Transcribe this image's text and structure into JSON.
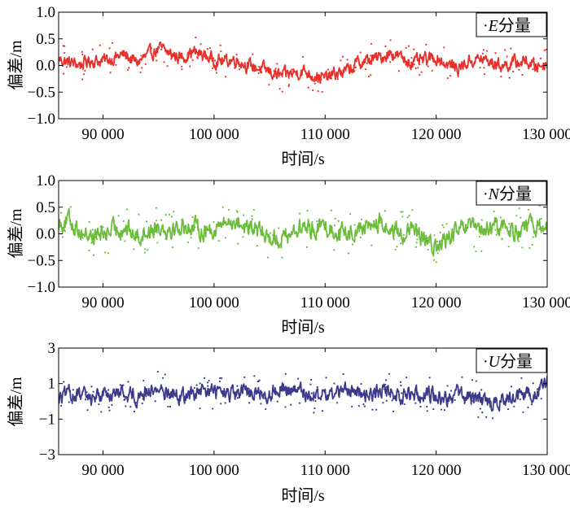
{
  "chart_data": [
    {
      "type": "line",
      "component": "E",
      "legend_prefix": "·",
      "legend_symbol": "E",
      "legend_suffix": "分量",
      "legend_position": "top-right",
      "xlabel": "时间/s",
      "ylabel": "偏差/m",
      "xlim": [
        86000,
        130000
      ],
      "ylim": [
        -1.0,
        1.0
      ],
      "x_ticks": [
        90000,
        100000,
        110000,
        120000,
        130000
      ],
      "x_tick_labels": [
        "90 000",
        "100 000",
        "110 000",
        "120 000",
        "130 000"
      ],
      "y_ticks": [
        1.0,
        0.5,
        0.0,
        -0.5,
        -1.0
      ],
      "y_tick_labels": [
        "1.0",
        "0.5",
        "0.0",
        "−0.5",
        "−1.0"
      ],
      "color": "#e8312b",
      "series": [
        {
          "name": "E",
          "x": [
            86000,
            87000,
            88000,
            89000,
            90000,
            91000,
            92000,
            93000,
            94000,
            95000,
            96000,
            97000,
            98000,
            99000,
            100000,
            101000,
            102000,
            103000,
            104000,
            105000,
            106000,
            107000,
            108000,
            109000,
            110000,
            111000,
            112000,
            113000,
            114000,
            115000,
            116000,
            117000,
            118000,
            119000,
            120000,
            121000,
            122000,
            123000,
            124000,
            125000,
            126000,
            127000,
            128000,
            129000,
            130000
          ],
          "y": [
            0.12,
            0.05,
            0.02,
            0.1,
            0.08,
            0.15,
            0.2,
            0.05,
            0.18,
            0.32,
            0.22,
            0.15,
            0.25,
            0.2,
            0.1,
            0.08,
            0.12,
            0.0,
            -0.05,
            -0.12,
            -0.2,
            -0.15,
            -0.1,
            -0.18,
            -0.25,
            -0.15,
            -0.1,
            0.05,
            0.1,
            0.15,
            0.25,
            0.12,
            0.05,
            0.1,
            0.15,
            0.02,
            -0.05,
            0.08,
            0.12,
            0.05,
            0.0,
            0.05,
            0.08,
            -0.02,
            0.05
          ],
          "amplitude": 0.16
        }
      ]
    },
    {
      "type": "line",
      "component": "N",
      "legend_prefix": "·",
      "legend_symbol": "N",
      "legend_suffix": "分量",
      "legend_position": "top-right",
      "xlabel": "时间/s",
      "ylabel": "偏差/m",
      "xlim": [
        86000,
        130000
      ],
      "ylim": [
        -1.0,
        1.0
      ],
      "x_ticks": [
        90000,
        100000,
        110000,
        120000,
        130000
      ],
      "x_tick_labels": [
        "90 000",
        "100 000",
        "110 000",
        "120 000",
        "130 000"
      ],
      "y_ticks": [
        1.0,
        0.5,
        0.0,
        -0.5,
        -1.0
      ],
      "y_tick_labels": [
        "1.0",
        "0.5",
        "0.0",
        "−0.5",
        "−1.0"
      ],
      "color": "#6cbd3c",
      "series": [
        {
          "name": "N",
          "x": [
            86000,
            87000,
            88000,
            89000,
            90000,
            91000,
            92000,
            93000,
            94000,
            95000,
            96000,
            97000,
            98000,
            99000,
            100000,
            101000,
            102000,
            103000,
            104000,
            105000,
            106000,
            107000,
            108000,
            109000,
            110000,
            111000,
            112000,
            113000,
            114000,
            115000,
            116000,
            117000,
            118000,
            119000,
            120000,
            121000,
            122000,
            123000,
            124000,
            125000,
            126000,
            127000,
            128000,
            129000,
            130000
          ],
          "y": [
            0.2,
            0.25,
            0.05,
            -0.05,
            0.0,
            0.08,
            0.12,
            -0.05,
            0.05,
            0.15,
            0.1,
            0.12,
            0.15,
            0.05,
            0.1,
            0.2,
            0.25,
            0.1,
            0.05,
            -0.05,
            -0.1,
            0.05,
            0.12,
            0.1,
            0.15,
            0.05,
            0.0,
            0.1,
            0.15,
            0.2,
            0.05,
            0.0,
            0.05,
            -0.15,
            -0.25,
            -0.1,
            0.05,
            0.1,
            0.05,
            0.1,
            0.15,
            0.05,
            0.1,
            0.15,
            0.1
          ],
          "amplitude": 0.22
        }
      ]
    },
    {
      "type": "line",
      "component": "U",
      "legend_prefix": "·",
      "legend_symbol": "U",
      "legend_suffix": "分量",
      "legend_position": "top-right",
      "xlabel": "时间/s",
      "ylabel": "偏差/m",
      "xlim": [
        86000,
        130000
      ],
      "ylim": [
        -3,
        3
      ],
      "x_ticks": [
        90000,
        100000,
        110000,
        120000,
        130000
      ],
      "x_tick_labels": [
        "90 000",
        "100 000",
        "110 000",
        "120 000",
        "130 000"
      ],
      "y_ticks": [
        3,
        1,
        -1,
        -3
      ],
      "y_tick_labels": [
        "3",
        "1",
        "−1",
        "−3"
      ],
      "color": "#3b3a8c",
      "series": [
        {
          "name": "U",
          "x": [
            86000,
            87000,
            88000,
            89000,
            90000,
            91000,
            92000,
            93000,
            94000,
            95000,
            96000,
            97000,
            98000,
            99000,
            100000,
            101000,
            102000,
            103000,
            104000,
            105000,
            106000,
            107000,
            108000,
            109000,
            110000,
            111000,
            112000,
            113000,
            114000,
            115000,
            116000,
            117000,
            118000,
            119000,
            120000,
            121000,
            122000,
            123000,
            124000,
            125000,
            126000,
            127000,
            128000,
            129000,
            130000
          ],
          "y": [
            0.2,
            0.4,
            0.3,
            0.2,
            0.5,
            0.4,
            0.5,
            0.3,
            0.6,
            0.7,
            0.5,
            0.3,
            0.4,
            0.5,
            0.6,
            0.4,
            0.3,
            0.6,
            0.5,
            0.4,
            0.8,
            0.6,
            0.5,
            0.4,
            0.3,
            0.5,
            0.6,
            0.5,
            0.4,
            0.6,
            0.5,
            0.3,
            0.4,
            0.5,
            0.3,
            0.2,
            0.4,
            0.2,
            0.1,
            -0.2,
            0.1,
            0.2,
            0.3,
            0.6,
            1.0
          ],
          "amplitude": 0.55
        }
      ]
    }
  ]
}
